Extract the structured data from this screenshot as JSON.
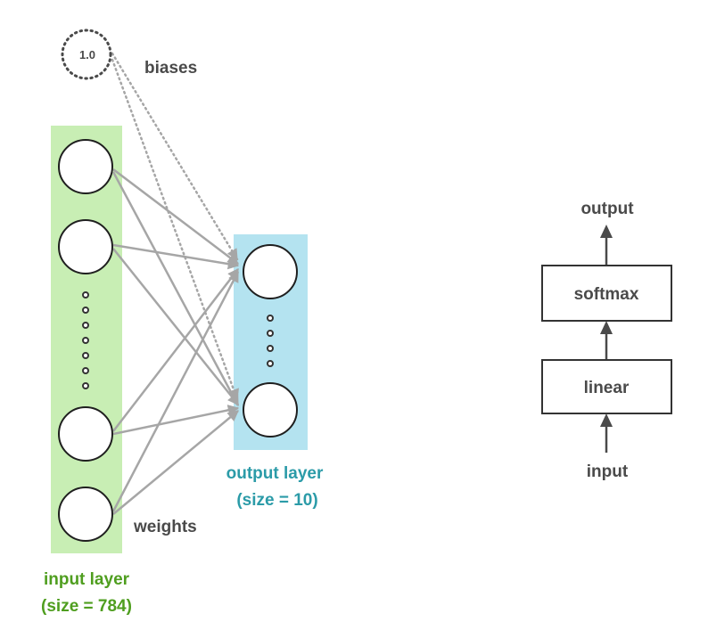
{
  "network": {
    "bias_node_value": "1.0",
    "biases_label": "biases",
    "weights_label": "weights",
    "input_layer": {
      "title": "input layer",
      "size": "(size = 784)"
    },
    "output_layer": {
      "title": "output layer",
      "size": "(size = 10)"
    }
  },
  "flow": {
    "output_label": "output",
    "softmax_label": "softmax",
    "linear_label": "linear",
    "input_label": "input"
  },
  "colors": {
    "input_layer_fill": "#c8eeb4",
    "output_layer_fill": "#b4e3f0",
    "input_layer_text": "#4f9e1f",
    "output_layer_text": "#2b9ba8",
    "label_text": "#4a4a4a",
    "connection": "#a6a6a6",
    "node_stroke": "#1f1f1f"
  }
}
